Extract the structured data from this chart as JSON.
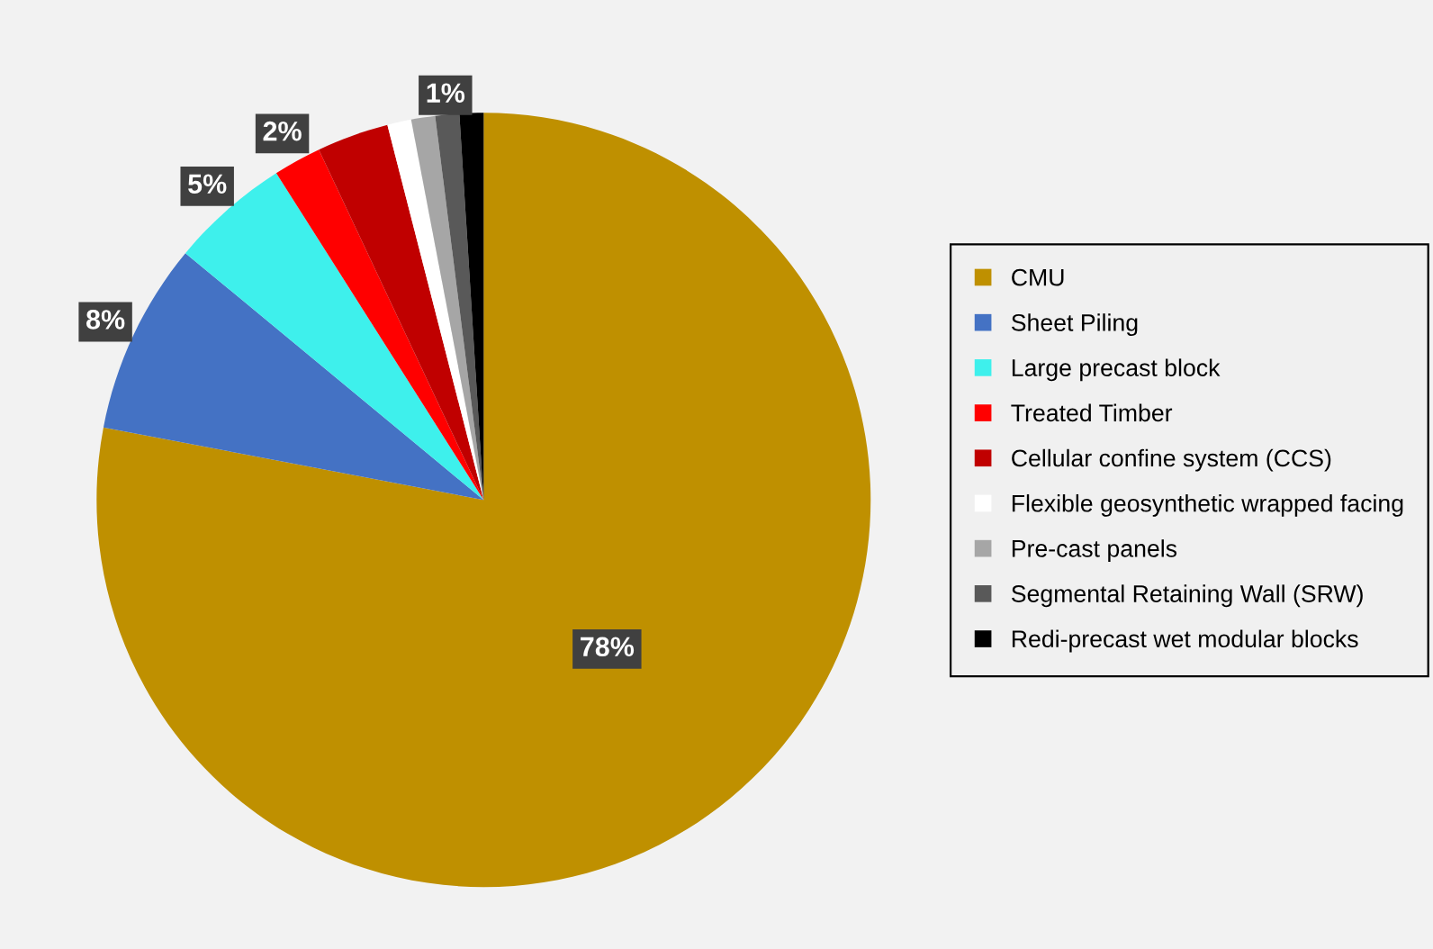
{
  "chart_data": {
    "type": "pie",
    "categories": [
      "CMU",
      "Sheet Piling",
      "Large precast block",
      "Treated Timber",
      "Cellular confine system (CCS)",
      "Flexible geosynthetic wrapped facing",
      "Pre-cast panels",
      "Segmental Retaining Wall (SRW)",
      "Redi-precast wet modular blocks"
    ],
    "values": [
      78,
      8,
      5,
      2,
      3,
      1,
      1,
      1,
      1
    ],
    "colors": [
      "#bf9000",
      "#4472c4",
      "#3ef0ec",
      "#ff0000",
      "#c00000",
      "#ffffff",
      "#a6a6a6",
      "#595959",
      "#000000"
    ],
    "value_labels": [
      "78%",
      "8%",
      "5%",
      "2%",
      null,
      null,
      null,
      "1%",
      null
    ],
    "legend": "right"
  }
}
